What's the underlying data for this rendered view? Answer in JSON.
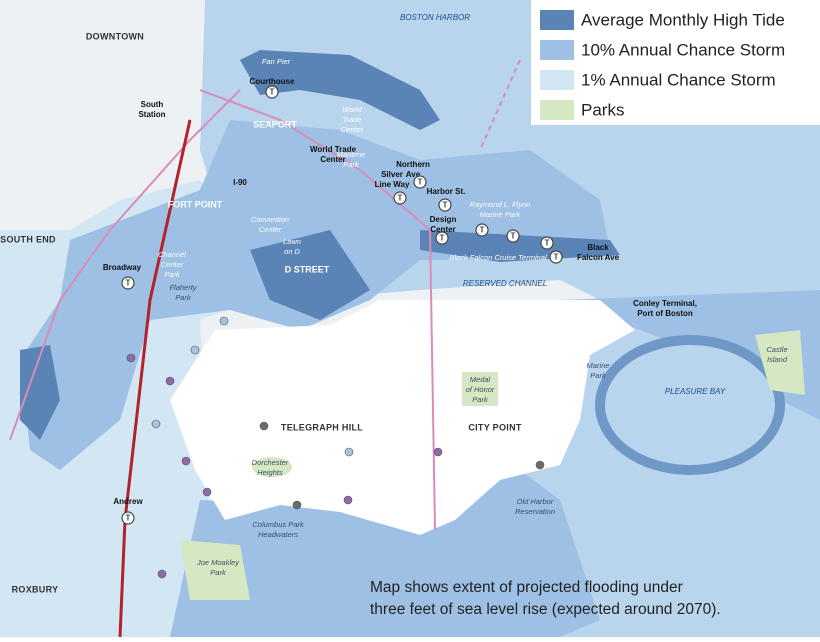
{
  "legend": {
    "items": [
      {
        "label": "Average Monthly High Tide",
        "color": "#5b84b6"
      },
      {
        "label": "10% Annual Chance Storm",
        "color": "#9dc0e4"
      },
      {
        "label": "1% Annual Chance Storm",
        "color": "#d3e6f4"
      },
      {
        "label": "Parks",
        "color": "#d5e8c3"
      }
    ]
  },
  "caption": [
    "Map shows extent of projected flooding under",
    "three feet of sea level rise (expected around 2070)."
  ],
  "neighborhoods": {
    "downtown": "DOWNTOWN",
    "south_end": "SOUTH END",
    "roxbury": "ROXBURY",
    "seaport": "SEAPORT",
    "fort_point": "FORT POINT",
    "d_street": "D STREET",
    "telegraph_hill": "TELEGRAPH HILL",
    "city_point": "CITY POINT"
  },
  "water": {
    "boston_harbor": "BOSTON HARBOR",
    "reserved_channel": "RESERVED CHANNEL",
    "pleasure_bay": "PLEASURE BAY"
  },
  "stations": {
    "courthouse": "Courthouse",
    "south_station": [
      "South",
      "Station"
    ],
    "world_trade_center": [
      "World Trade",
      "Center"
    ],
    "silver_line_way": [
      "Silver",
      "Line Way"
    ],
    "northern_ave": [
      "Northern",
      "Ave"
    ],
    "harbor_st": "Harbor St.",
    "design_center": [
      "Design",
      "Center"
    ],
    "black_falcon_ave": [
      "Black",
      "Falcon Ave"
    ],
    "broadway": "Broadway",
    "andrew": "Andrew"
  },
  "places": {
    "fan_pier": "Fan Pier",
    "world_trade_center": [
      "World",
      "Trade",
      "Center"
    ],
    "maritime_park": [
      "Maritime",
      "Park"
    ],
    "flynn_park": [
      "Raymond L. Flynn",
      "Marine Park"
    ],
    "black_falcon_terminal": "Black Falcon Cruise Terminal",
    "i90": "I-90",
    "convention_center": [
      "Convention",
      "Center"
    ],
    "lawn_on_d": [
      "Lawn",
      "on D"
    ],
    "channel_center": [
      "Channel",
      "Center",
      "Park"
    ],
    "flaherty_park": [
      "Flaherty",
      "Park"
    ],
    "conley_terminal": [
      "Conley Terminal,",
      "Port of Boston"
    ],
    "castle_island": [
      "Castle",
      "Island"
    ],
    "marine_park": [
      "Marine",
      "Park"
    ],
    "medal_of_honor": [
      "Medal",
      "of Honor",
      "Park"
    ],
    "dorchester_heights": [
      "Dorchester",
      "Heights"
    ],
    "old_harbor": [
      "Old Harbor",
      "Reservation"
    ],
    "columbus_park": [
      "Columbus Park",
      "Headwaters"
    ],
    "joe_moakley": [
      "Joe Moakley",
      "Park"
    ]
  }
}
